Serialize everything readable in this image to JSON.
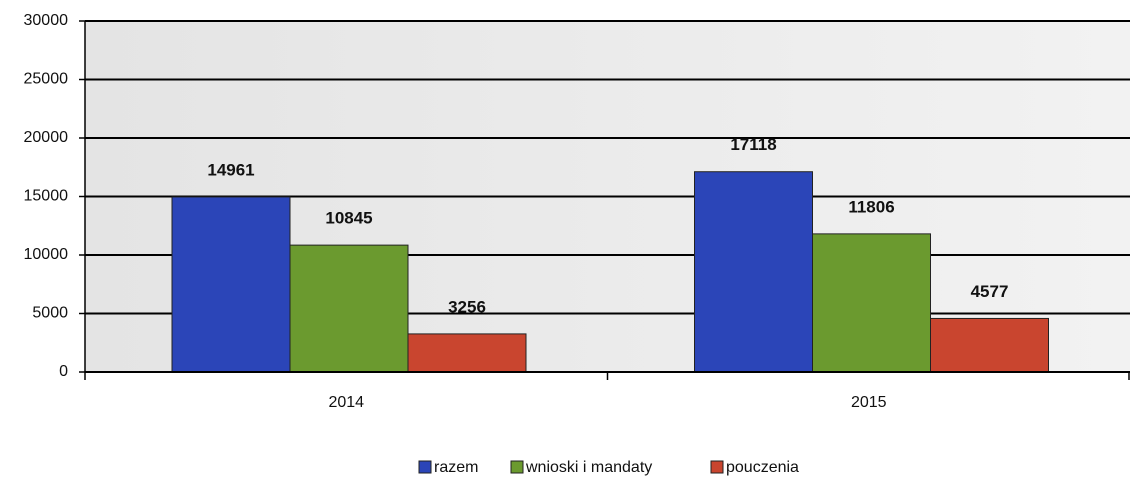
{
  "chart_data": {
    "type": "bar",
    "categories": [
      "2014",
      "2015"
    ],
    "series": [
      {
        "name": "razem",
        "color": "#2b45b8",
        "values": [
          14961,
          17118
        ]
      },
      {
        "name": "wnioski i mandaty",
        "color": "#6b9a2f",
        "values": [
          10845,
          11806
        ]
      },
      {
        "name": "pouczenia",
        "color": "#c9452f",
        "values": [
          3256,
          4577
        ]
      }
    ],
    "ylim": [
      0,
      30000
    ],
    "yticks": [
      0,
      5000,
      10000,
      15000,
      20000,
      25000,
      30000
    ],
    "grid": true,
    "legend": "bottom"
  }
}
